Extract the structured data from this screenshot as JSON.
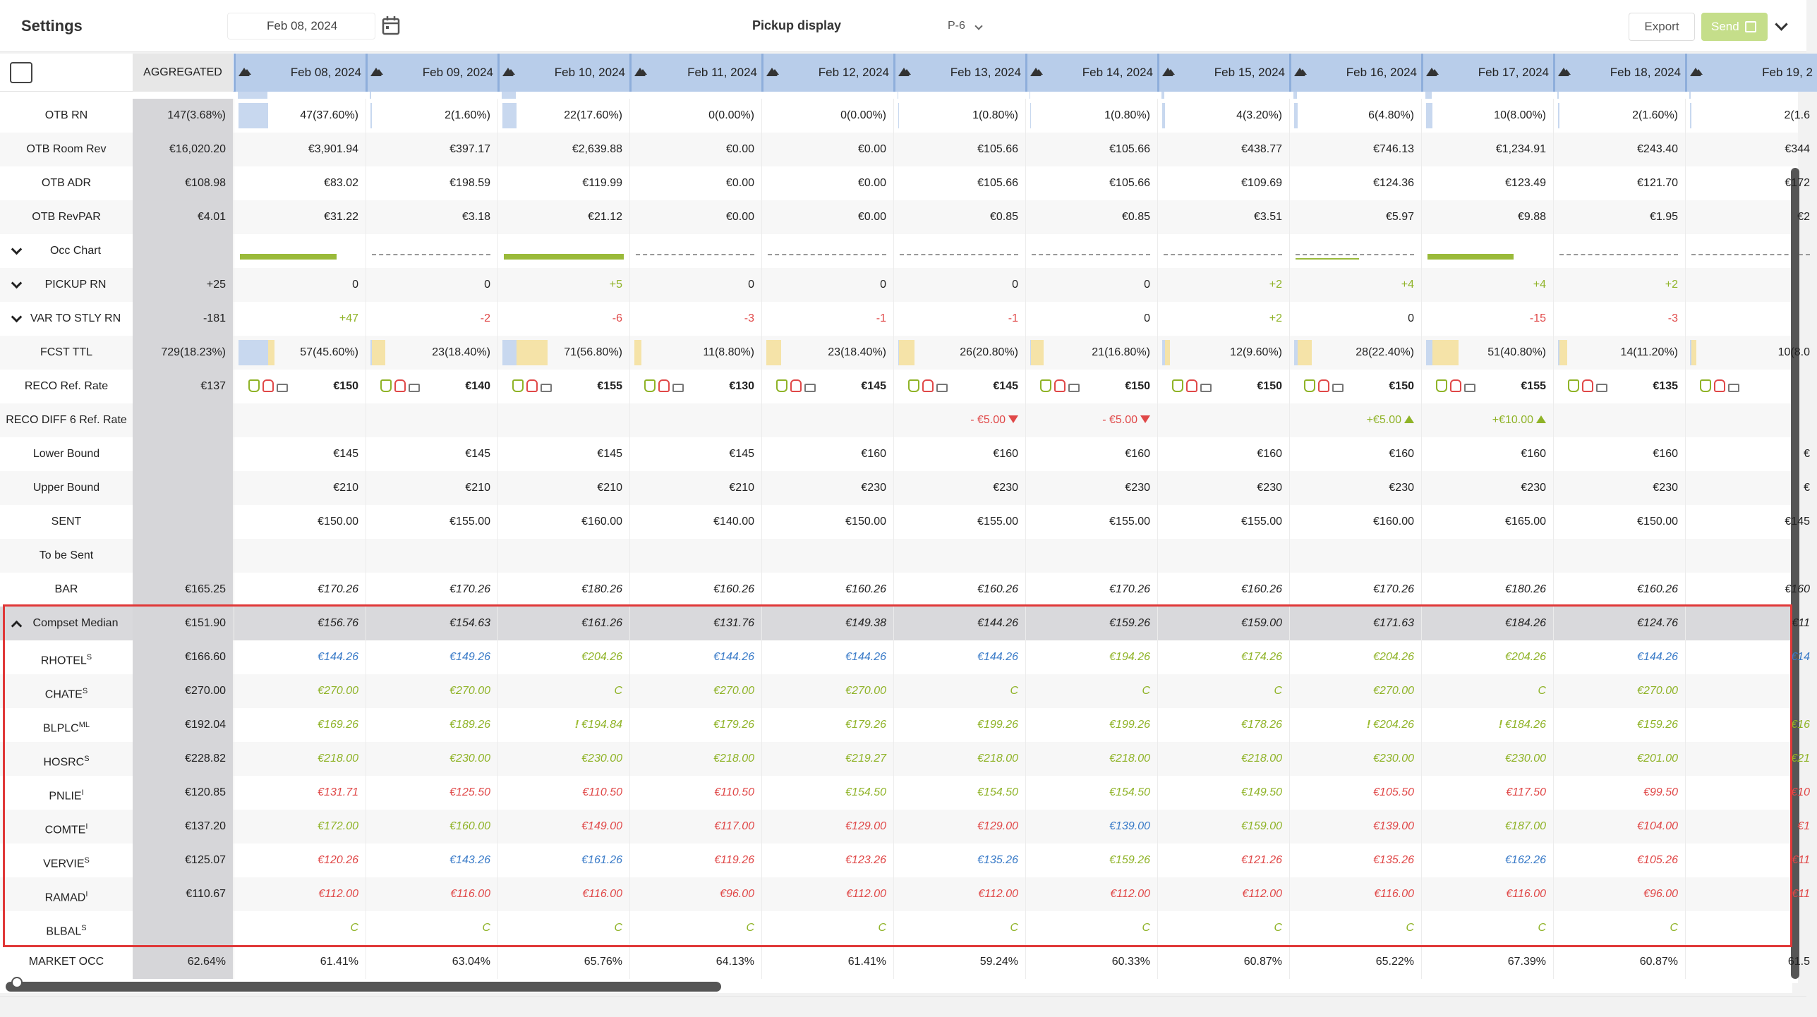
{
  "toolbar": {
    "title": "Settings",
    "date": "Feb 08, 2024",
    "pickup_label": "Pickup display",
    "pickup_value": "P-6",
    "export_label": "Export",
    "send_label": "Send"
  },
  "colors": {
    "green": "#8fb327",
    "red": "#e04848",
    "blue": "#3a7bc8",
    "header_blue": "#b8cdea",
    "aggregated_gray": "#d6d6d9",
    "highlight_red": "#e03838"
  },
  "header": {
    "aggregated": "AGGREGATED",
    "days": [
      "Feb 08, 2024",
      "Feb 09, 2024",
      "Feb 10, 2024",
      "Feb 11, 2024",
      "Feb 12, 2024",
      "Feb 13, 2024",
      "Feb 14, 2024",
      "Feb 15, 2024",
      "Feb 16, 2024",
      "Feb 17, 2024",
      "Feb 18, 2024",
      "Feb 19, 2"
    ]
  },
  "rows": {
    "otb_rn": {
      "label": "OTB RN",
      "agg": "147(3.68%)",
      "cells": [
        "47(37.60%)",
        "2(1.60%)",
        "22(17.60%)",
        "0(0.00%)",
        "0(0.00%)",
        "1(0.80%)",
        "1(0.80%)",
        "4(3.20%)",
        "6(4.80%)",
        "10(8.00%)",
        "2(1.60%)",
        "2(1.6"
      ],
      "fill": [
        37.6,
        1.6,
        17.6,
        0,
        0,
        0.8,
        0.8,
        3.2,
        4.8,
        8.0,
        1.6,
        1.6
      ]
    },
    "otb_room_rev": {
      "label": "OTB Room Rev",
      "agg": "€16,020.20",
      "cells": [
        "€3,901.94",
        "€397.17",
        "€2,639.88",
        "€0.00",
        "€0.00",
        "€105.66",
        "€105.66",
        "€438.77",
        "€746.13",
        "€1,234.91",
        "€243.40",
        "€344"
      ]
    },
    "otb_adr": {
      "label": "OTB ADR",
      "agg": "€108.98",
      "cells": [
        "€83.02",
        "€198.59",
        "€119.99",
        "€0.00",
        "€0.00",
        "€105.66",
        "€105.66",
        "€109.69",
        "€124.36",
        "€123.49",
        "€121.70",
        "€172"
      ]
    },
    "otb_revpar": {
      "label": "OTB RevPAR",
      "agg": "€4.01",
      "cells": [
        "€31.22",
        "€3.18",
        "€21.12",
        "€0.00",
        "€0.00",
        "€0.85",
        "€0.85",
        "€3.51",
        "€5.97",
        "€9.88",
        "€1.95",
        "€2"
      ]
    },
    "occ_chart": {
      "label": "Occ Chart"
    },
    "pickup_rn": {
      "label": "PICKUP RN",
      "agg": "+25",
      "cells": [
        "0",
        "0",
        "+5",
        "0",
        "0",
        "0",
        "0",
        "+2",
        "+4",
        "+4",
        "+2",
        ""
      ]
    },
    "var_stly": {
      "label": "VAR TO STLY RN",
      "agg": "-181",
      "cells": [
        "+47",
        "-2",
        "-6",
        "-3",
        "-1",
        "-1",
        "0",
        "+2",
        "0",
        "-15",
        "-3",
        ""
      ]
    },
    "fcst_ttl": {
      "label": "FCST TTL",
      "agg": "729(18.23%)",
      "cells": [
        "57(45.60%)",
        "23(18.40%)",
        "71(56.80%)",
        "11(8.80%)",
        "23(18.40%)",
        "26(20.80%)",
        "21(16.80%)",
        "12(9.60%)",
        "28(22.40%)",
        "51(40.80%)",
        "14(11.20%)",
        "10(8.0"
      ],
      "otb_fill": [
        37.6,
        1.6,
        17.6,
        0,
        0,
        0.8,
        0.8,
        3.2,
        4.8,
        8.0,
        1.6,
        1.6
      ],
      "fcst_fill": [
        45.6,
        18.4,
        56.8,
        8.8,
        18.4,
        20.8,
        16.8,
        9.6,
        22.4,
        40.8,
        11.2,
        8.0
      ]
    },
    "reco": {
      "label": "RECO Ref. Rate",
      "agg": "€137",
      "cells": [
        "€150",
        "€140",
        "€155",
        "€130",
        "€145",
        "€145",
        "€150",
        "€150",
        "€150",
        "€155",
        "€135",
        ""
      ]
    },
    "reco_diff": {
      "label": "RECO DIFF 6 Ref. Rate",
      "cells": [
        "",
        "",
        "",
        "",
        "",
        "- €5.00",
        "- €5.00",
        "",
        "+€5.00",
        "+€10.00",
        "",
        ""
      ]
    },
    "lower_bound": {
      "label": "Lower Bound",
      "cells": [
        "€145",
        "€145",
        "€145",
        "€145",
        "€160",
        "€160",
        "€160",
        "€160",
        "€160",
        "€160",
        "€160",
        "€"
      ]
    },
    "upper_bound": {
      "label": "Upper Bound",
      "cells": [
        "€210",
        "€210",
        "€210",
        "€210",
        "€230",
        "€230",
        "€230",
        "€230",
        "€230",
        "€230",
        "€230",
        "€"
      ]
    },
    "sent": {
      "label": "SENT",
      "cells": [
        "€150.00",
        "€155.00",
        "€160.00",
        "€140.00",
        "€150.00",
        "€155.00",
        "€155.00",
        "€155.00",
        "€160.00",
        "€165.00",
        "€150.00",
        "€145"
      ]
    },
    "to_be_sent": {
      "label": "To be Sent"
    },
    "bar": {
      "label": "BAR",
      "agg": "€165.25",
      "cells": [
        "€170.26",
        "€170.26",
        "€180.26",
        "€160.26",
        "€160.26",
        "€160.26",
        "€170.26",
        "€160.26",
        "€170.26",
        "€180.26",
        "€160.26",
        "€160"
      ]
    },
    "compset_median": {
      "label": "Compset Median",
      "agg": "€151.90",
      "cells": [
        "€156.76",
        "€154.63",
        "€161.26",
        "€131.76",
        "€149.38",
        "€144.26",
        "€159.26",
        "€159.00",
        "€171.63",
        "€184.26",
        "€124.76",
        "€11"
      ]
    }
  },
  "competitors": [
    {
      "name": "RHOTEL",
      "sup": "S",
      "agg": "€166.60",
      "cells": [
        "€144.26",
        "€149.26",
        "€204.26",
        "€144.26",
        "€144.26",
        "€144.26",
        "€194.26",
        "€174.26",
        "€204.26",
        "€204.26",
        "€144.26",
        "€14"
      ],
      "colors": [
        "blue",
        "blue",
        "green",
        "blue",
        "blue",
        "blue",
        "green",
        "green",
        "green",
        "green",
        "blue",
        "blue"
      ]
    },
    {
      "name": "CHATE",
      "sup": "S",
      "agg": "€270.00",
      "cells": [
        "€270.00",
        "€270.00",
        "C",
        "€270.00",
        "€270.00",
        "C",
        "C",
        "C",
        "€270.00",
        "C",
        "€270.00",
        ""
      ],
      "colors": [
        "green",
        "green",
        "green",
        "green",
        "green",
        "green",
        "green",
        "green",
        "green",
        "green",
        "green",
        "green"
      ]
    },
    {
      "name": "BLPLC",
      "sup": "ML",
      "agg": "€192.04",
      "cells": [
        "€169.26",
        "€189.26",
        "€194.84",
        "€179.26",
        "€179.26",
        "€199.26",
        "€199.26",
        "€178.26",
        "€204.26",
        "€184.26",
        "€159.26",
        "€16"
      ],
      "colors": [
        "green",
        "green",
        "green",
        "green",
        "green",
        "green",
        "green",
        "green",
        "green",
        "green",
        "green",
        "green"
      ],
      "flags": [
        false,
        false,
        true,
        false,
        false,
        false,
        false,
        false,
        true,
        true,
        false,
        false
      ]
    },
    {
      "name": "HOSRC",
      "sup": "S",
      "agg": "€228.82",
      "cells": [
        "€218.00",
        "€230.00",
        "€230.00",
        "€218.00",
        "€219.27",
        "€218.00",
        "€218.00",
        "€218.00",
        "€230.00",
        "€230.00",
        "€201.00",
        "€21"
      ],
      "colors": [
        "green",
        "green",
        "green",
        "green",
        "green",
        "green",
        "green",
        "green",
        "green",
        "green",
        "green",
        "green"
      ]
    },
    {
      "name": "PNLIE",
      "sup": "I",
      "agg": "€120.85",
      "cells": [
        "€131.71",
        "€125.50",
        "€110.50",
        "€110.50",
        "€154.50",
        "€154.50",
        "€154.50",
        "€149.50",
        "€105.50",
        "€117.50",
        "€99.50",
        "€10"
      ],
      "colors": [
        "red",
        "red",
        "red",
        "red",
        "green",
        "green",
        "green",
        "green",
        "red",
        "red",
        "red",
        "red"
      ]
    },
    {
      "name": "COMTE",
      "sup": "I",
      "agg": "€137.20",
      "cells": [
        "€172.00",
        "€160.00",
        "€149.00",
        "€117.00",
        "€129.00",
        "€129.00",
        "€139.00",
        "€159.00",
        "€139.00",
        "€187.00",
        "€104.00",
        "€1"
      ],
      "colors": [
        "green",
        "green",
        "red",
        "red",
        "red",
        "red",
        "blue",
        "green",
        "red",
        "green",
        "red",
        "red"
      ]
    },
    {
      "name": "VERVIE",
      "sup": "S",
      "agg": "€125.07",
      "cells": [
        "€120.26",
        "€143.26",
        "€161.26",
        "€119.26",
        "€123.26",
        "€135.26",
        "€159.26",
        "€121.26",
        "€135.26",
        "€162.26",
        "€105.26",
        "€11"
      ],
      "colors": [
        "red",
        "blue",
        "blue",
        "red",
        "red",
        "blue",
        "green",
        "red",
        "red",
        "blue",
        "red",
        "red"
      ]
    },
    {
      "name": "RAMAD",
      "sup": "I",
      "agg": "€110.67",
      "cells": [
        "€112.00",
        "€116.00",
        "€116.00",
        "€96.00",
        "€112.00",
        "€112.00",
        "€112.00",
        "€112.00",
        "€116.00",
        "€116.00",
        "€96.00",
        "€11"
      ],
      "colors": [
        "red",
        "red",
        "red",
        "red",
        "red",
        "red",
        "red",
        "red",
        "red",
        "red",
        "red",
        "red"
      ]
    },
    {
      "name": "BLBAL",
      "sup": "S",
      "agg": "",
      "cells": [
        "C",
        "C",
        "C",
        "C",
        "C",
        "C",
        "C",
        "C",
        "C",
        "C",
        "C",
        ""
      ],
      "colors": [
        "green",
        "green",
        "green",
        "green",
        "green",
        "green",
        "green",
        "green",
        "green",
        "green",
        "green",
        "green"
      ]
    }
  ],
  "market_occ": {
    "label": "MARKET OCC",
    "agg": "62.64%",
    "cells": [
      "61.41%",
      "63.04%",
      "65.76%",
      "64.13%",
      "61.41%",
      "59.24%",
      "60.33%",
      "60.87%",
      "65.22%",
      "67.39%",
      "60.87%",
      "61.5"
    ]
  }
}
